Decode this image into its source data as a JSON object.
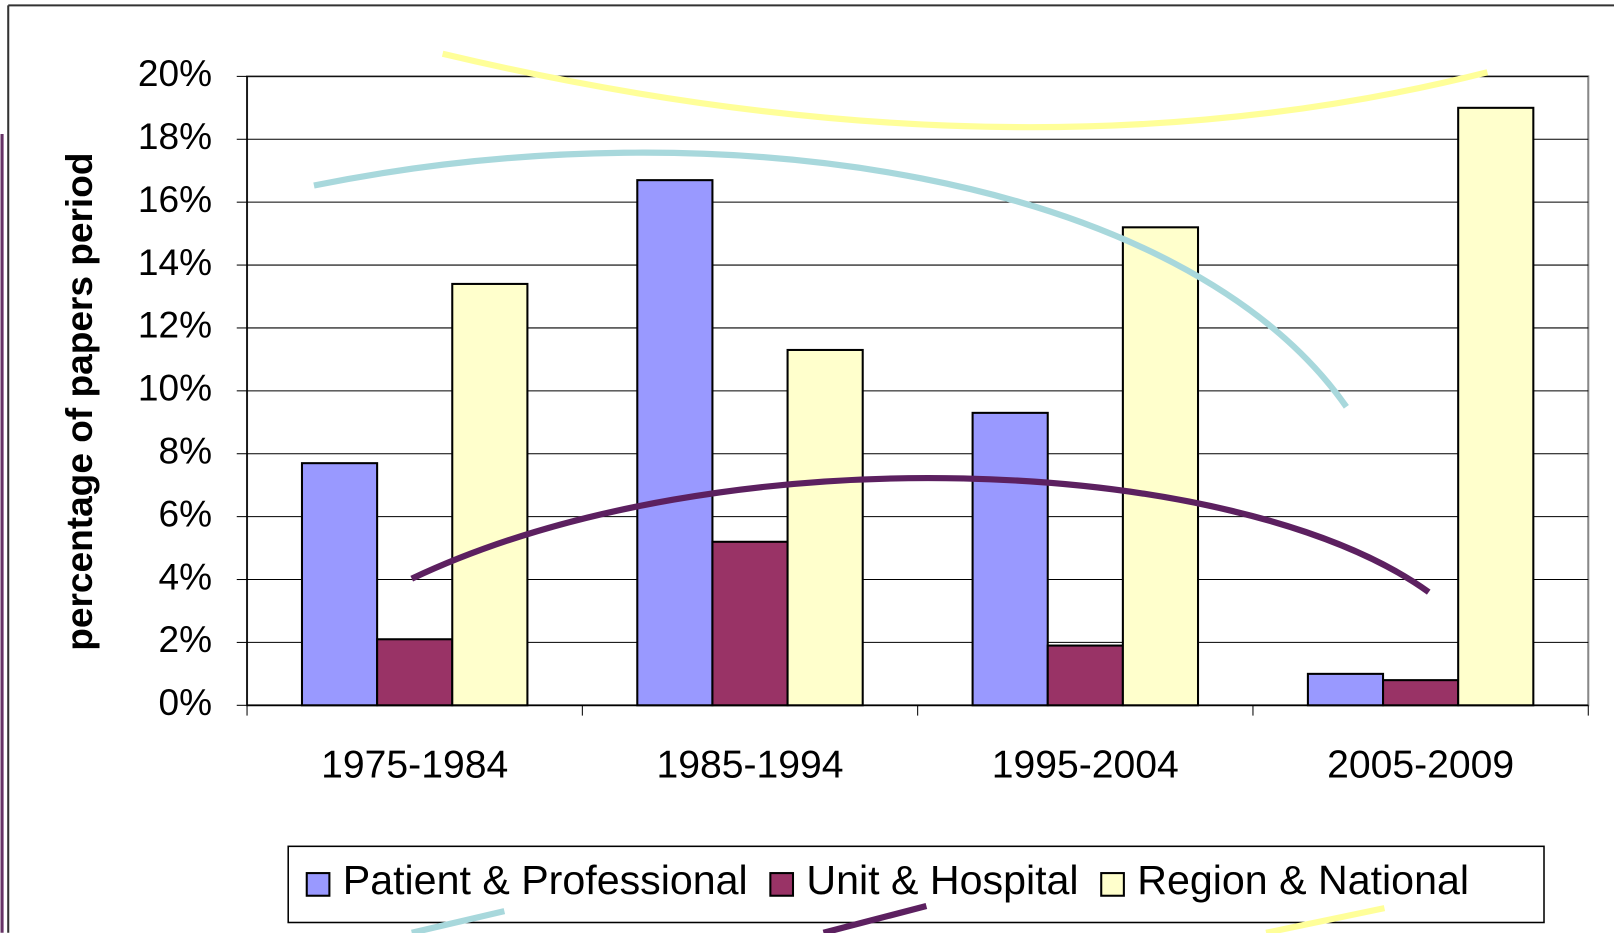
{
  "chart_data": {
    "type": "bar",
    "y_label": "percentage of papers period",
    "categories": [
      "1975-1984",
      "1985-1994",
      "1995-2004",
      "2005-2009"
    ],
    "series": [
      {
        "name": "Patient & Professional",
        "color": "#9999ff",
        "values": [
          7.7,
          16.7,
          9.3,
          1.0
        ]
      },
      {
        "name": "Unit & Hospital",
        "color": "#993366",
        "values": [
          2.1,
          5.2,
          1.9,
          0.8
        ]
      },
      {
        "name": "Region & National",
        "color": "#ffffcc",
        "values": [
          13.4,
          11.3,
          15.2,
          19.0
        ]
      }
    ],
    "ylim": [
      0,
      20
    ],
    "yticks": [
      {
        "value": 0,
        "label": "0%"
      },
      {
        "value": 2,
        "label": "2%"
      },
      {
        "value": 4,
        "label": "4%"
      },
      {
        "value": 6,
        "label": "6%"
      },
      {
        "value": 8,
        "label": "8%"
      },
      {
        "value": 10,
        "label": "10%"
      },
      {
        "value": 12,
        "label": "12%"
      },
      {
        "value": 14,
        "label": "14%"
      },
      {
        "value": 16,
        "label": "16%"
      },
      {
        "value": 18,
        "label": "18%"
      },
      {
        "value": 20,
        "label": "20%"
      }
    ],
    "grid": true,
    "legend": "bottom"
  }
}
